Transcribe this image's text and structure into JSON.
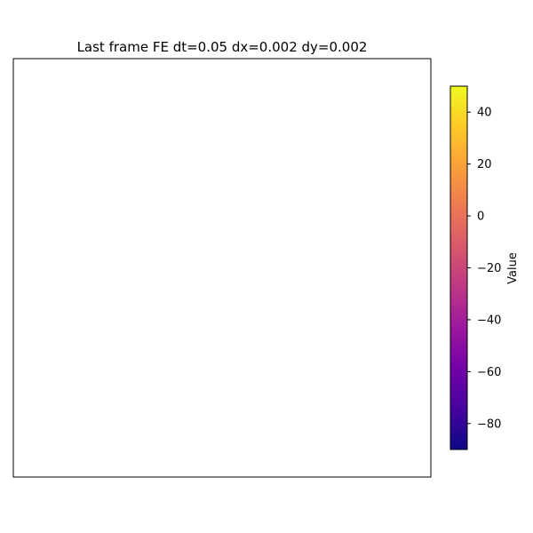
{
  "chart_data": {
    "type": "heatmap",
    "title": "Last frame FE dt=0.05 dx=0.002 dy=0.002",
    "xlabel": "",
    "ylabel": "",
    "show_axis_ticks": false,
    "grid": false,
    "field_rendered": "empty (all white)",
    "colorbar": {
      "label": "Value",
      "colormap": "plasma",
      "range": [
        -90,
        50
      ],
      "ticks": [
        -80,
        -60,
        -40,
        -20,
        0,
        20,
        40
      ],
      "tick_labels": [
        "−80",
        "−60",
        "−40",
        "−20",
        "0",
        "20",
        "40"
      ]
    }
  },
  "colors": {
    "plasma_stops": [
      "#0d0887",
      "#46039f",
      "#7201a8",
      "#9c179e",
      "#bd3786",
      "#d8576b",
      "#ed7953",
      "#fb9f3a",
      "#fdca26",
      "#f0f921"
    ],
    "frame": "#000000",
    "background": "#ffffff"
  }
}
